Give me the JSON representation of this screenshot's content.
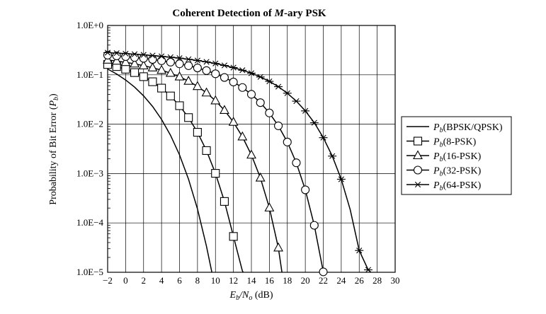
{
  "chart_data": {
    "type": "line",
    "title": "Coherent Detection of M-ary PSK",
    "title_parts": {
      "pre": "Coherent Detection of ",
      "italic": "M",
      "post": "-ary PSK"
    },
    "xlabel": "Eb/No (dB)",
    "xlabel_parts": {
      "main": "E",
      "sub1": "b",
      "slash": "/N",
      "sub2": "o",
      "unit": " (dB)"
    },
    "ylabel": "Probability of Bit Error (Pb)",
    "ylabel_parts": {
      "pre": "Probability of Bit Error (",
      "main": "P",
      "sub": "b",
      "post": ")"
    },
    "xlim": [
      -2,
      30
    ],
    "ylim": [
      1e-05,
      1
    ],
    "yscale": "log",
    "grid": true,
    "legend_position": "right",
    "x_ticks": [
      -2,
      0,
      2,
      4,
      6,
      8,
      10,
      12,
      14,
      16,
      18,
      20,
      22,
      24,
      26,
      28,
      30
    ],
    "x_tick_labels": [
      "−2",
      "0",
      "2",
      "4",
      "6",
      "8",
      "10",
      "12",
      "14",
      "16",
      "18",
      "20",
      "22",
      "24",
      "26",
      "28",
      "30"
    ],
    "y_ticks": [
      1,
      0.1,
      0.01,
      0.001,
      0.0001,
      1e-05
    ],
    "y_tick_labels": [
      "1.0E+0",
      "1.0E−1",
      "1.0E−2",
      "1.0E−3",
      "1.0E−4",
      "1.0E−5"
    ],
    "series": [
      {
        "name": "Pb(BPSK/QPSK)",
        "label_main": "P",
        "label_sub": "b",
        "label_rest": "(BPSK/QPSK)",
        "marker": "none",
        "x": [
          -2,
          -1,
          0,
          1,
          2,
          3,
          4,
          5,
          6,
          7,
          8,
          9,
          9.6
        ],
        "y": [
          0.131,
          0.104,
          0.0786,
          0.0563,
          0.0375,
          0.0229,
          0.0125,
          0.00595,
          0.00239,
          0.00077,
          0.000191,
          3.36e-05,
          1e-05
        ]
      },
      {
        "name": "Pb(8-PSK)",
        "label_main": "P",
        "label_sub": "b",
        "label_rest": "(8-PSK)",
        "marker": "square",
        "x": [
          -2,
          -1,
          0,
          1,
          2,
          3,
          4,
          5,
          6,
          7,
          8,
          9,
          10,
          11,
          12,
          13,
          13.1
        ],
        "y": [
          0.162,
          0.147,
          0.13,
          0.111,
          0.0918,
          0.0724,
          0.0538,
          0.0373,
          0.0237,
          0.0136,
          0.00685,
          0.00292,
          0.00101,
          0.000272,
          5.32e-05,
          1.06e-05,
          1e-05
        ],
        "marker_x": [
          -2,
          -1,
          0,
          1,
          2,
          3,
          4,
          5,
          6,
          7,
          8,
          9,
          10,
          11,
          12
        ],
        "marker_y": [
          0.162,
          0.147,
          0.13,
          0.111,
          0.0918,
          0.0724,
          0.0538,
          0.0373,
          0.0237,
          0.0136,
          0.00685,
          0.00292,
          0.00101,
          0.000272,
          5.32e-05
        ]
      },
      {
        "name": "Pb(16-PSK)",
        "label_main": "P",
        "label_sub": "b",
        "label_rest": "(16-PSK)",
        "marker": "triangle",
        "x": [
          -2,
          -1,
          0,
          1,
          2,
          3,
          4,
          5,
          6,
          7,
          8,
          9,
          10,
          11,
          12,
          13,
          14,
          15,
          16,
          17,
          17.4
        ],
        "y": [
          0.2,
          0.19,
          0.179,
          0.167,
          0.153,
          0.139,
          0.124,
          0.108,
          0.0913,
          0.0746,
          0.0583,
          0.0432,
          0.0299,
          0.0191,
          0.011,
          0.00556,
          0.00238,
          0.000816,
          0.000202,
          3.13e-05,
          1e-05
        ],
        "marker_x": [
          -2,
          -1,
          0,
          1,
          2,
          3,
          4,
          5,
          6,
          7,
          8,
          9,
          10,
          11,
          12,
          13,
          14,
          15,
          16,
          17
        ],
        "marker_y": [
          0.2,
          0.19,
          0.179,
          0.167,
          0.153,
          0.139,
          0.124,
          0.108,
          0.0913,
          0.0746,
          0.0583,
          0.0432,
          0.0299,
          0.0191,
          0.011,
          0.00556,
          0.00238,
          0.000816,
          0.000202,
          3.13e-05
        ]
      },
      {
        "name": "Pb(32-PSK)",
        "label_main": "P",
        "label_sub": "b",
        "label_rest": "(32-PSK)",
        "marker": "circle",
        "x": [
          -2,
          -1,
          0,
          1,
          2,
          3,
          4,
          5,
          6,
          7,
          8,
          9,
          10,
          11,
          12,
          13,
          14,
          15,
          16,
          17,
          18,
          19,
          20,
          21,
          22,
          22.2
        ],
        "y": [
          0.25,
          0.242,
          0.234,
          0.225,
          0.216,
          0.205,
          0.193,
          0.181,
          0.167,
          0.153,
          0.138,
          0.122,
          0.105,
          0.0884,
          0.0715,
          0.0553,
          0.0403,
          0.0273,
          0.0169,
          0.00927,
          0.00435,
          0.00165,
          0.000468,
          8.93e-05,
          1.02e-05,
          1e-05
        ],
        "marker_x": [
          -2,
          -1,
          0,
          1,
          2,
          3,
          4,
          5,
          6,
          7,
          8,
          9,
          10,
          11,
          12,
          13,
          14,
          15,
          16,
          17,
          18,
          19,
          20,
          21,
          22
        ],
        "marker_y": [
          0.25,
          0.242,
          0.234,
          0.225,
          0.216,
          0.205,
          0.193,
          0.181,
          0.167,
          0.153,
          0.138,
          0.122,
          0.105,
          0.0884,
          0.0715,
          0.0553,
          0.0403,
          0.0273,
          0.0169,
          0.00927,
          0.00435,
          0.00165,
          0.000468,
          8.93e-05,
          1.02e-05
        ]
      },
      {
        "name": "Pb(64-PSK)",
        "label_main": "P",
        "label_sub": "b",
        "label_rest": "(64-PSK)",
        "marker": "star",
        "x": [
          -2,
          -1,
          0,
          1,
          2,
          3,
          4,
          5,
          6,
          7,
          8,
          9,
          10,
          11,
          12,
          13,
          14,
          15,
          16,
          17,
          18,
          19,
          20,
          21,
          22,
          23,
          24,
          25,
          26,
          27,
          27.3
        ],
        "y": [
          0.281,
          0.275,
          0.269,
          0.262,
          0.254,
          0.246,
          0.237,
          0.228,
          0.218,
          0.207,
          0.195,
          0.183,
          0.17,
          0.155,
          0.14,
          0.124,
          0.108,
          0.0906,
          0.0737,
          0.0575,
          0.0424,
          0.0293,
          0.0186,
          0.0107,
          0.00533,
          0.00226,
          0.000766,
          0.000185,
          2.76e-05,
          1.12e-05,
          1e-05
        ],
        "marker_x": [
          -2,
          -1,
          0,
          1,
          2,
          3,
          4,
          5,
          6,
          7,
          8,
          9,
          10,
          11,
          12,
          13,
          14,
          15,
          16,
          17,
          18,
          19,
          20,
          21,
          22,
          23,
          24,
          26,
          27
        ],
        "marker_y": [
          0.281,
          0.275,
          0.269,
          0.262,
          0.254,
          0.246,
          0.237,
          0.228,
          0.218,
          0.207,
          0.195,
          0.183,
          0.17,
          0.155,
          0.14,
          0.124,
          0.108,
          0.0906,
          0.0737,
          0.0575,
          0.0424,
          0.0293,
          0.0186,
          0.0107,
          0.00533,
          0.00226,
          0.000766,
          2.76e-05,
          1.12e-05
        ]
      }
    ]
  }
}
